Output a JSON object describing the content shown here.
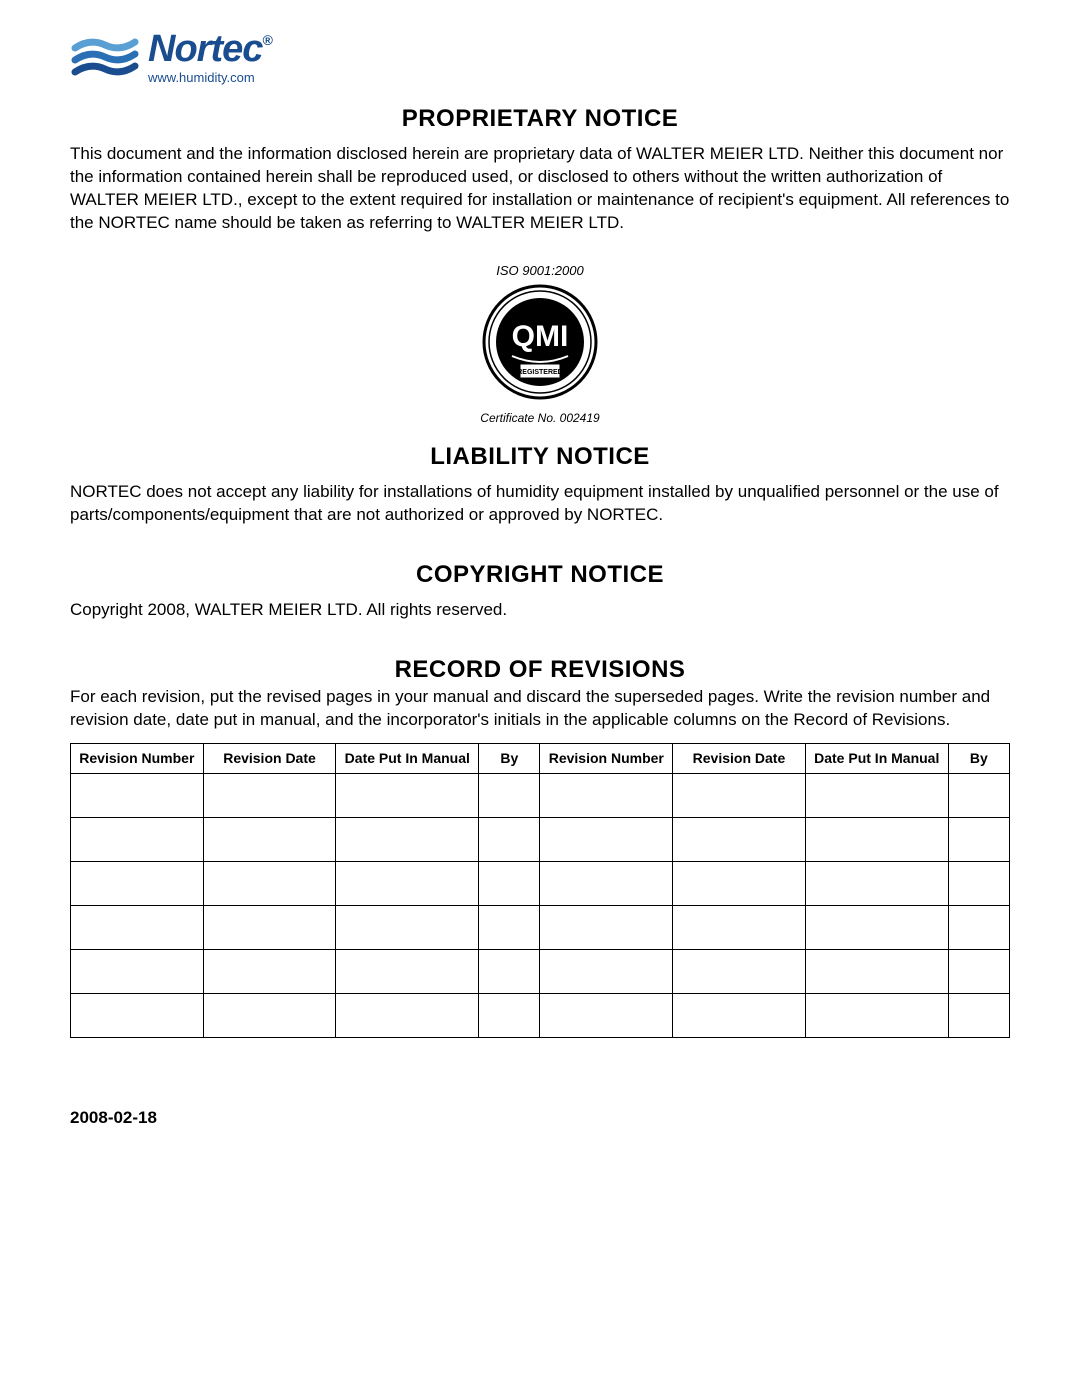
{
  "logo": {
    "brand": "Nortec",
    "url": "www.humidity.com",
    "brand_color": "#1a4d8f",
    "wave_color_primary": "#2b6fb5",
    "wave_color_dark": "#1a4d8f",
    "registered_mark": "®"
  },
  "sections": {
    "proprietary": {
      "heading": "PROPRIETARY NOTICE",
      "body": "This document and the information disclosed herein are proprietary data of WALTER MEIER LTD. Neither this document nor the information contained herein shall be reproduced used, or disclosed to others without the written authorization of WALTER MEIER LTD., except to the extent required for installation or maintenance of recipient's equipment. All references to the NORTEC name should be taken as referring to WALTER MEIER LTD."
    },
    "certification": {
      "iso_label": "ISO 9001:2000",
      "badge_text": "QMI",
      "badge_sub": "REGISTERED",
      "cert_number_label": "Certificate No. 002419",
      "badge_fill": "#000000"
    },
    "liability": {
      "heading": "LIABILITY NOTICE",
      "body": "NORTEC does not accept any liability for installations of humidity equipment installed by unqualified personnel or the use of parts/components/equipment that are not authorized or approved by NORTEC."
    },
    "copyright": {
      "heading": "COPYRIGHT NOTICE",
      "body": "Copyright 2008, WALTER MEIER LTD. All rights reserved."
    },
    "revisions": {
      "heading": "RECORD OF REVISIONS",
      "body": "For each revision, put the revised pages in your manual and discard the superseded pages. Write the revision number and revision date, date put in manual, and the incorporator's initials in the applicable columns on the Record of Revisions.",
      "table": {
        "columns_left": [
          "Revision Number",
          "Revision Date",
          "Date Put In Manual",
          "By"
        ],
        "columns_right": [
          "Revision Number",
          "Revision Date",
          "Date Put In Manual",
          "By"
        ],
        "empty_rows": 6,
        "border_color": "#000000",
        "header_fontsize": 14
      }
    }
  },
  "footer": {
    "date": "2008-02-18"
  }
}
